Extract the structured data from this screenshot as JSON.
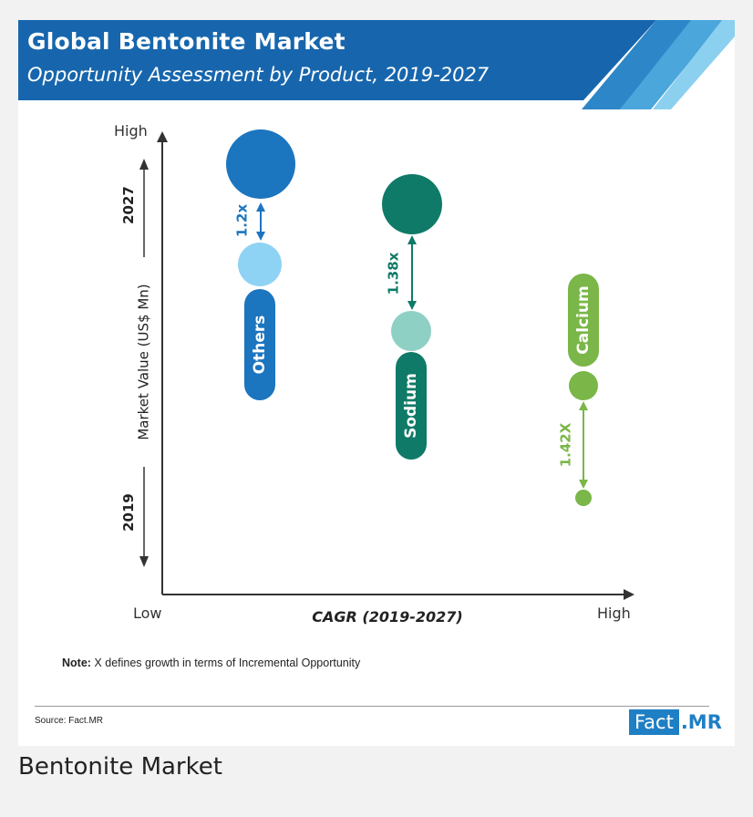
{
  "header": {
    "title": "Global Bentonite Market",
    "subtitle": "Opportunity Assessment by Product, 2019-2027"
  },
  "chart_data": {
    "type": "bubble",
    "title": "Global Bentonite Market",
    "subtitle": "Opportunity Assessment by Product, 2019-2027",
    "xlabel": "CAGR (2019-2027)",
    "ylabel": "Market Value (US$ Mn)",
    "x_axis_labels": {
      "low": "Low",
      "high": "High"
    },
    "y_axis_labels": {
      "low": "Low",
      "high": "High"
    },
    "y_year_labels": {
      "start": "2019",
      "end": "2027"
    },
    "series": [
      {
        "name": "Others",
        "growth": "1.2x",
        "color_2027": "#1c75bf",
        "color_2019": "#8fd3f4"
      },
      {
        "name": "Sodium",
        "growth": "1.38x",
        "color_2027": "#0f7a67",
        "color_2019": "#8fd0c5"
      },
      {
        "name": "Calcium",
        "growth": "1.42X",
        "color_2027": "#7ab648",
        "color_2019": "#7ab648"
      }
    ]
  },
  "footer": {
    "note_label": "Note:",
    "note_text": " X defines growth in terms of Incremental Opportunity",
    "source": "Source: Fact.MR",
    "logo_fact": "Fact",
    "logo_mr": ".MR"
  },
  "caption": "Bentonite Market",
  "colors": {
    "banner_dark": "#1766ad",
    "banner_light": "#5fb8e6",
    "axis": "#333333"
  }
}
